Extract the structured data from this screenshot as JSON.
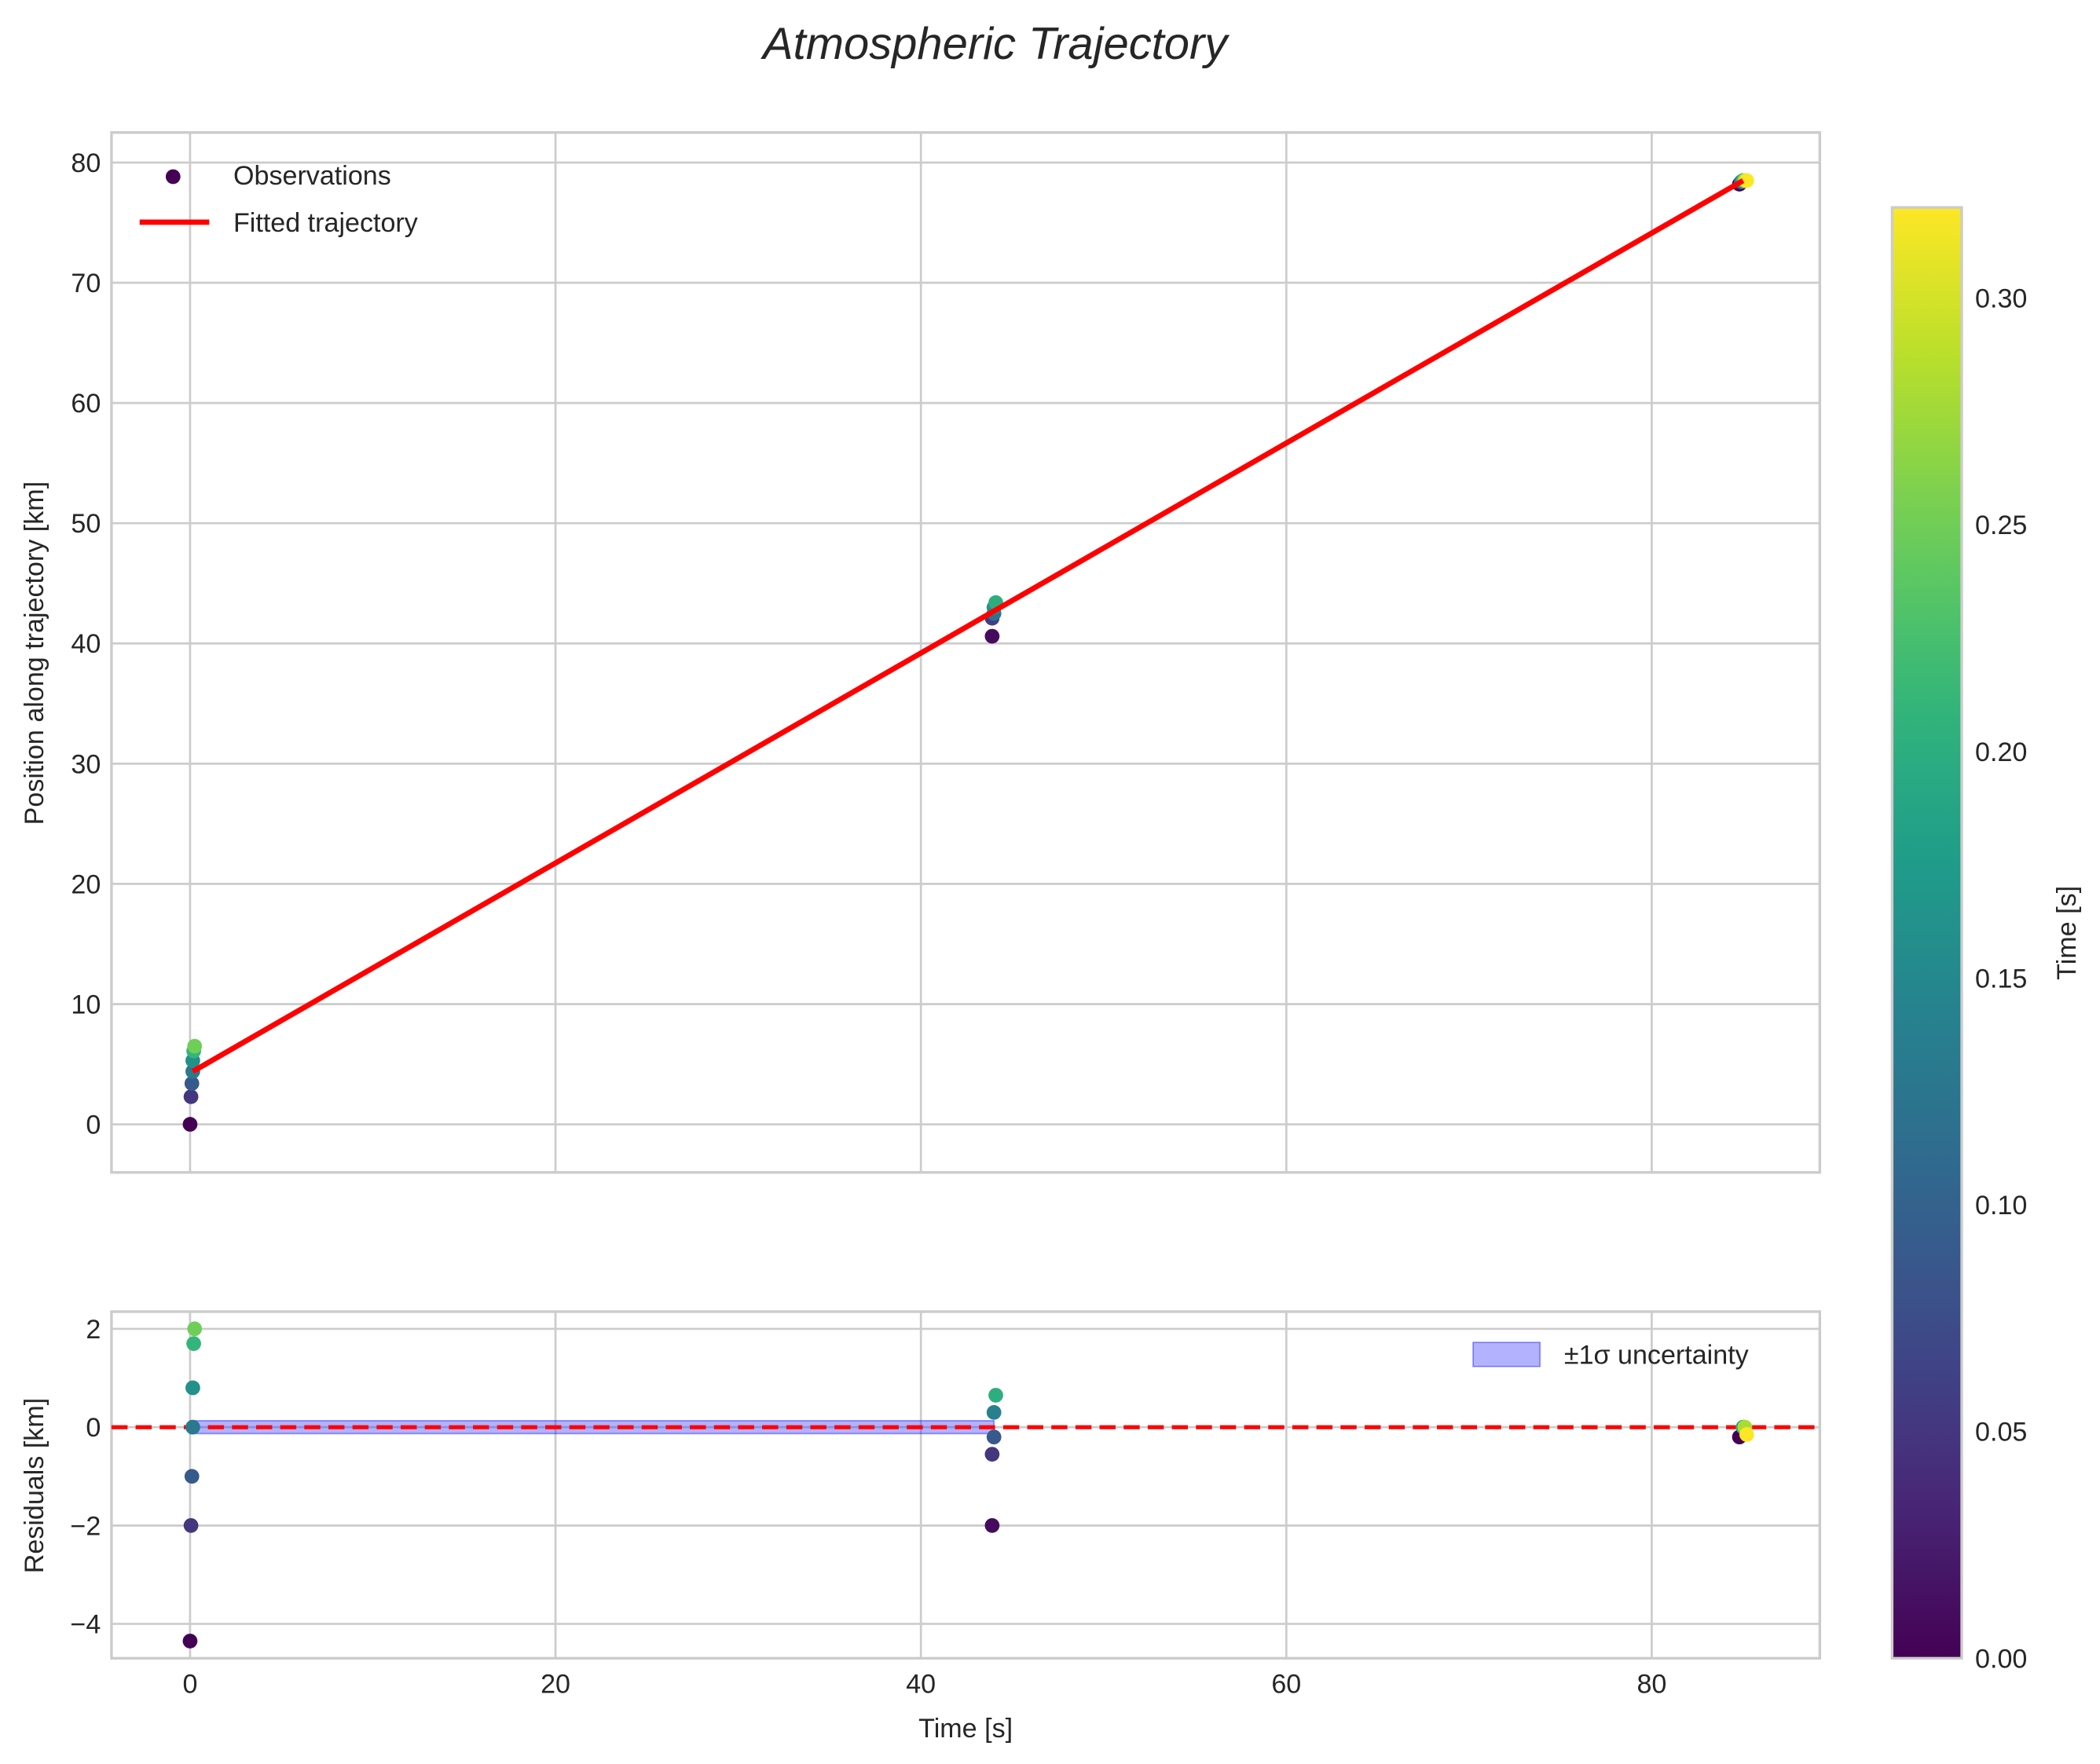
{
  "title": "Atmospheric Trajectory",
  "chart_data": [
    {
      "type": "scatter",
      "panel": "top",
      "xlabel": "",
      "ylabel": "Position along trajectory [km]",
      "xlim": [
        -4.3,
        89.2
      ],
      "ylim": [
        -4,
        82.5
      ],
      "xticks": [
        0,
        20,
        40,
        60,
        80
      ],
      "yticks": [
        0,
        10,
        20,
        30,
        40,
        50,
        60,
        70,
        80
      ],
      "grid": true,
      "legend": {
        "placement": "top-left",
        "entries": [
          "Observations",
          "Fitted trajectory"
        ]
      },
      "observations": [
        {
          "t": 0.0,
          "pos": 0.0,
          "c": 0.0
        },
        {
          "t": 0.05,
          "pos": 2.3,
          "c": 0.05
        },
        {
          "t": 0.1,
          "pos": 3.4,
          "c": 0.09
        },
        {
          "t": 0.15,
          "pos": 4.4,
          "c": 0.13
        },
        {
          "t": 0.15,
          "pos": 5.3,
          "c": 0.16
        },
        {
          "t": 0.2,
          "pos": 6.1,
          "c": 0.21
        },
        {
          "t": 0.25,
          "pos": 6.5,
          "c": 0.25
        },
        {
          "t": 43.9,
          "pos": 40.6,
          "c": 0.01
        },
        {
          "t": 43.9,
          "pos": 42.1,
          "c": 0.06
        },
        {
          "t": 44.0,
          "pos": 42.5,
          "c": 0.12
        },
        {
          "t": 44.0,
          "pos": 43.0,
          "c": 0.16
        },
        {
          "t": 44.1,
          "pos": 43.4,
          "c": 0.2
        },
        {
          "t": 84.8,
          "pos": 78.2,
          "c": 0.0
        },
        {
          "t": 84.9,
          "pos": 78.4,
          "c": 0.12
        },
        {
          "t": 85.0,
          "pos": 78.5,
          "c": 0.2
        },
        {
          "t": 85.1,
          "pos": 78.5,
          "c": 0.28
        },
        {
          "t": 85.2,
          "pos": 78.5,
          "c": 0.32
        }
      ],
      "fit": {
        "name": "Fitted trajectory",
        "x": [
          0.15,
          85.0
        ],
        "y": [
          4.4,
          78.5
        ],
        "color": "#ff0000"
      }
    },
    {
      "type": "scatter",
      "panel": "bottom",
      "xlabel": "Time [s]",
      "ylabel": "Residuals [km]",
      "xlim": [
        -4.3,
        89.2
      ],
      "ylim": [
        -4.7,
        2.35
      ],
      "xticks": [
        0,
        20,
        40,
        60,
        80
      ],
      "yticks": [
        -4,
        -2,
        0,
        2
      ],
      "grid": true,
      "legend": {
        "placement": "top-right",
        "entries": [
          "±1σ uncertainty"
        ]
      },
      "residuals": [
        {
          "t": 0.25,
          "r": 2.0,
          "c": 0.25
        },
        {
          "t": 0.2,
          "r": 1.7,
          "c": 0.21
        },
        {
          "t": 0.15,
          "r": 0.8,
          "c": 0.16
        },
        {
          "t": 0.15,
          "r": 0.0,
          "c": 0.13
        },
        {
          "t": 0.1,
          "r": -1.0,
          "c": 0.09
        },
        {
          "t": 0.05,
          "r": -2.0,
          "c": 0.05
        },
        {
          "t": 0.0,
          "r": -4.35,
          "c": 0.0
        },
        {
          "t": 44.1,
          "r": 0.65,
          "c": 0.2
        },
        {
          "t": 44.0,
          "r": 0.3,
          "c": 0.14
        },
        {
          "t": 44.0,
          "r": -0.2,
          "c": 0.09
        },
        {
          "t": 43.9,
          "r": -0.55,
          "c": 0.05
        },
        {
          "t": 43.9,
          "r": -2.0,
          "c": 0.01
        },
        {
          "t": 84.8,
          "r": -0.2,
          "c": 0.0
        },
        {
          "t": 85.0,
          "r": 0.0,
          "c": 0.2
        },
        {
          "t": 85.1,
          "r": 0.0,
          "c": 0.28
        },
        {
          "t": 85.2,
          "r": -0.15,
          "c": 0.32
        }
      ],
      "zero_line": {
        "y": 0,
        "color": "#ff0000",
        "style": "dashed"
      },
      "uncertainty_band": {
        "x": [
          0,
          44
        ],
        "low": -0.05,
        "high": 0.05,
        "color": "#0000ff",
        "alpha": 0.3
      }
    }
  ],
  "colorbar": {
    "label": "Time [s]",
    "range": [
      0,
      0.32
    ],
    "ticks": [
      "0.00",
      "0.05",
      "0.10",
      "0.15",
      "0.20",
      "0.25",
      "0.30"
    ],
    "colormap": "viridis"
  }
}
